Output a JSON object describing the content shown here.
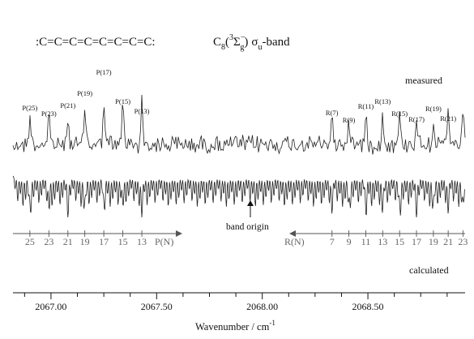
{
  "header": {
    "chain": ":C=C=C=C=C=C=C=C:",
    "mol_base": "C",
    "mol_sub": "8",
    "paren_open": "(",
    "term_pre": "3",
    "term_sym": "Σ",
    "term_sup": "−",
    "term_sub": "g",
    "paren_close": ")",
    "sigma": "σ",
    "sigma_sub": "u",
    "band_word": "-band"
  },
  "labels": {
    "measured": "measured",
    "calculated": "calculated",
    "band_origin": "band origin",
    "p_branch": "P(N)",
    "r_branch": "R(N)",
    "xlabel_main": "Wavenumber / cm",
    "xlabel_exp": "-1"
  },
  "chart_data": {
    "type": "line",
    "title": ":C=C=C=C=C=C=C=C: C8(3Σg−) σu-band",
    "xlabel": "Wavenumber / cm-1",
    "ylabel": "",
    "xlim": [
      2066.82,
      2068.96
    ],
    "x_ticks": [
      2067.0,
      2067.5,
      2068.0,
      2068.5
    ],
    "x_tick_labels": [
      "2067.00",
      "2067.50",
      "2068.00",
      "2068.50"
    ],
    "grid": false,
    "band_origin": 2068.02,
    "p_branch": [
      {
        "N": 25,
        "x": 2066.9
      },
      {
        "N": 23,
        "x": 2066.99
      },
      {
        "N": 21,
        "x": 2067.08
      },
      {
        "N": 19,
        "x": 2067.16
      },
      {
        "N": 17,
        "x": 2067.25
      },
      {
        "N": 15,
        "x": 2067.34
      },
      {
        "N": 13,
        "x": 2067.43
      }
    ],
    "r_branch": [
      {
        "N": 7,
        "x": 2068.33
      },
      {
        "N": 9,
        "x": 2068.41
      },
      {
        "N": 11,
        "x": 2068.49
      },
      {
        "N": 13,
        "x": 2068.57
      },
      {
        "N": 15,
        "x": 2068.65
      },
      {
        "N": 17,
        "x": 2068.73
      },
      {
        "N": 19,
        "x": 2068.81
      },
      {
        "N": 21,
        "x": 2068.88
      },
      {
        "N": 23,
        "x": 2068.95
      }
    ],
    "p_peak_labels": [
      "P(25)",
      "P(23)",
      "P(21)",
      "P(19)",
      "P(17)",
      "P(15)",
      "P(13)"
    ],
    "r_peak_labels": [
      "R(7)",
      "R(9)",
      "R(11)",
      "R(13)",
      "R(15)",
      "R(17)",
      "R(19)",
      "R(21)"
    ],
    "series": [
      {
        "name": "measured",
        "style": "noisy absorption trace with peaks at P/R line positions"
      },
      {
        "name": "calculated",
        "style": "simulated absorption dips (downward) at P/R line positions"
      }
    ]
  }
}
